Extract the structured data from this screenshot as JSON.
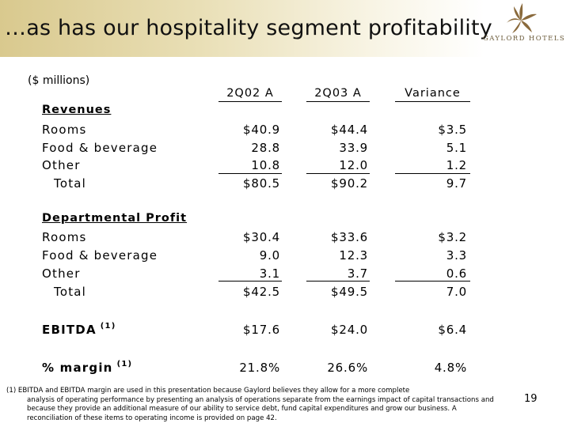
{
  "header": {
    "title": "…as has our hospitality segment profitability",
    "logo_text": "GAYLORD HOTELS"
  },
  "units": "($ millions)",
  "columns": [
    "2Q02 A",
    "2Q03 A",
    "Variance"
  ],
  "revenues": {
    "heading": "Revenues",
    "rows": [
      {
        "label": "Rooms",
        "v1": "$40.9",
        "v2": "$44.4",
        "v3": "$3.5"
      },
      {
        "label": "Food & beverage",
        "v1": "28.8",
        "v2": "33.9",
        "v3": "5.1"
      },
      {
        "label": "Other",
        "v1": "10.8",
        "v2": "12.0",
        "v3": "1.2"
      },
      {
        "label": "Total",
        "v1": "$80.5",
        "v2": "$90.2",
        "v3": "9.7"
      }
    ]
  },
  "departmental": {
    "heading": "Departmental Profit",
    "rows": [
      {
        "label": "Rooms",
        "v1": "$30.4",
        "v2": "$33.6",
        "v3": "$3.2"
      },
      {
        "label": "Food & beverage",
        "v1": "9.0",
        "v2": "12.3",
        "v3": "3.3"
      },
      {
        "label": "Other",
        "v1": "3.1",
        "v2": "3.7",
        "v3": "0.6"
      },
      {
        "label": "Total",
        "v1": "$42.5",
        "v2": "$49.5",
        "v3": "7.0"
      }
    ]
  },
  "ebitda": {
    "label": "EBITDA",
    "note": "(1)",
    "v1": "$17.6",
    "v2": "$24.0",
    "v3": "$6.4"
  },
  "margin": {
    "label": "% margin",
    "note": "(1)",
    "v1": "21.8%",
    "v2": "26.6%",
    "v3": "4.8%"
  },
  "footnote": {
    "marker": "(1)",
    "line1": "EBITDA and EBITDA margin are used in this presentation because Gaylord believes they allow for a more complete",
    "rest": "analysis of operating performance by presenting an analysis of operations separate from the earnings impact of capital transactions and because they provide an additional measure of our ability to service debt, fund capital expenditures and grow our business. A reconciliation of these items to operating income is provided on page 42."
  },
  "page_number": "19"
}
